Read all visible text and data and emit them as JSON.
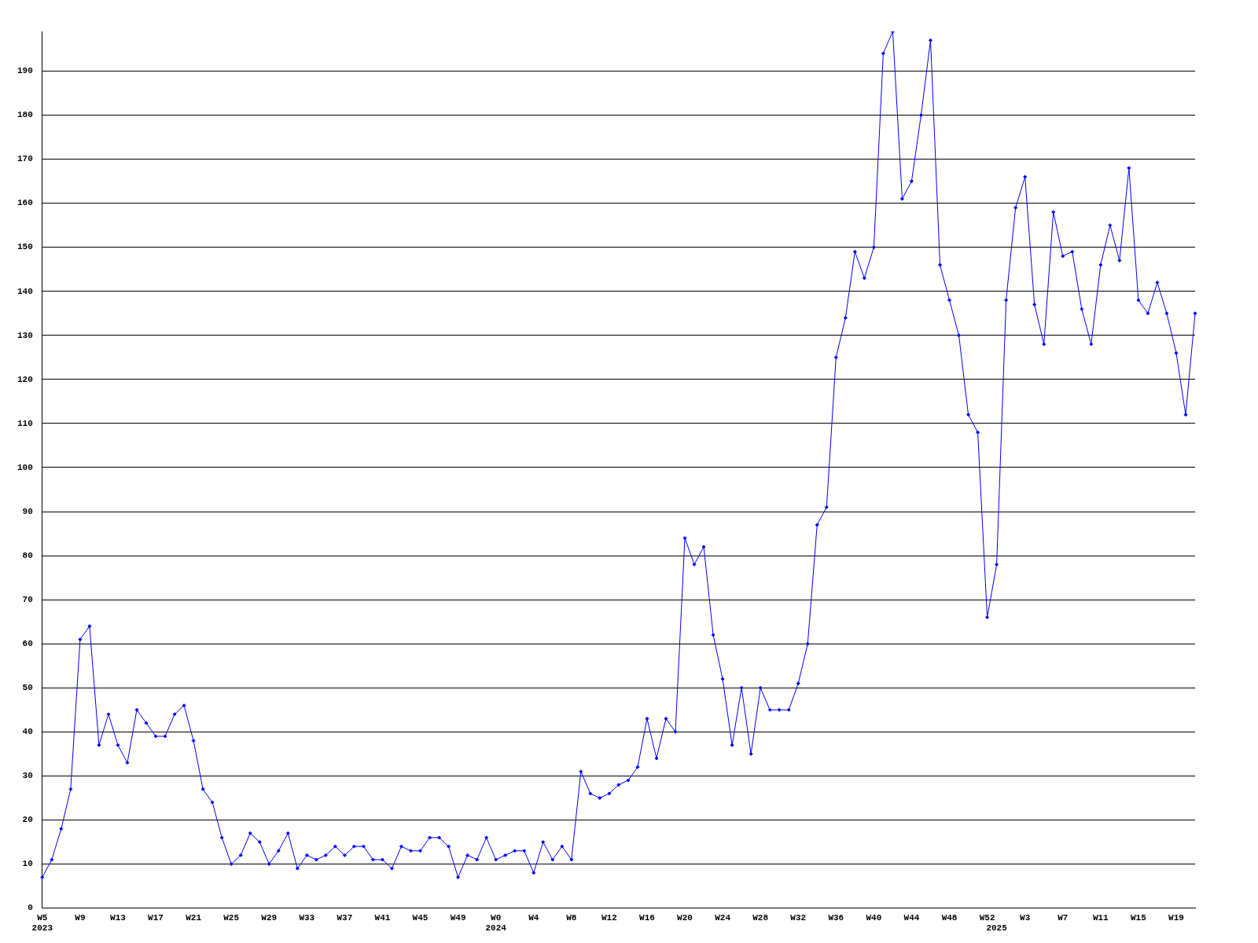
{
  "chart_data": {
    "type": "line",
    "categories": [
      "W5\n2023",
      null,
      null,
      null,
      "W9",
      null,
      null,
      null,
      "W13",
      null,
      null,
      null,
      "W17",
      null,
      null,
      null,
      "W21",
      null,
      null,
      null,
      "W25",
      null,
      null,
      null,
      "W29",
      null,
      null,
      null,
      "W33",
      null,
      null,
      null,
      "W37",
      null,
      null,
      null,
      "W41",
      null,
      null,
      null,
      "W45",
      null,
      null,
      null,
      "W49",
      null,
      null,
      null,
      "W0\n2024",
      null,
      null,
      null,
      "W4",
      null,
      null,
      null,
      "W8",
      null,
      null,
      null,
      "W12",
      null,
      null,
      null,
      "W16",
      null,
      null,
      null,
      "W20",
      null,
      null,
      null,
      "W24",
      null,
      null,
      null,
      "W28",
      null,
      null,
      null,
      "W32",
      null,
      null,
      null,
      "W36",
      null,
      null,
      null,
      "W40",
      null,
      null,
      null,
      "W44",
      null,
      null,
      null,
      "W48",
      null,
      null,
      null,
      "W52",
      "\n2025",
      null,
      null,
      "W3",
      null,
      null,
      null,
      "W7",
      null,
      null,
      null,
      "W11",
      null,
      null,
      null,
      "W15",
      null,
      null,
      null,
      "W19",
      null,
      null
    ],
    "series": [
      {
        "color": "#0000ff",
        "values": [
          7,
          11,
          18,
          27,
          61,
          64,
          37,
          44,
          37,
          33,
          45,
          42,
          39,
          39,
          44,
          46,
          38,
          27,
          24,
          16,
          10,
          12,
          17,
          15,
          10,
          13,
          17,
          9,
          12,
          11,
          12,
          14,
          12,
          14,
          14,
          11,
          11,
          9,
          14,
          13,
          13,
          16,
          16,
          14,
          7,
          12,
          11,
          16,
          11,
          12,
          13,
          13,
          8,
          15,
          11,
          14,
          11,
          31,
          26,
          25,
          26,
          28,
          29,
          32,
          43,
          34,
          43,
          40,
          84,
          78,
          82,
          62,
          52,
          37,
          50,
          35,
          50,
          45,
          45,
          45,
          51,
          60,
          87,
          91,
          125,
          134,
          149,
          143,
          150,
          194,
          199,
          161,
          165,
          180,
          197,
          146,
          138,
          130,
          112,
          108,
          66,
          78,
          138,
          159,
          166,
          137,
          128,
          158,
          148,
          149,
          136,
          128,
          146,
          155,
          147,
          168,
          138,
          135,
          142,
          135,
          126,
          112,
          135
        ]
      }
    ],
    "ylim": [
      0,
      199
    ],
    "yticks": [
      0,
      10,
      20,
      30,
      40,
      50,
      60,
      70,
      80,
      90,
      100,
      110,
      120,
      130,
      140,
      150,
      160,
      170,
      180,
      190
    ],
    "grid": "y",
    "legend": false,
    "marker": "diamond",
    "line_style": "solid"
  }
}
